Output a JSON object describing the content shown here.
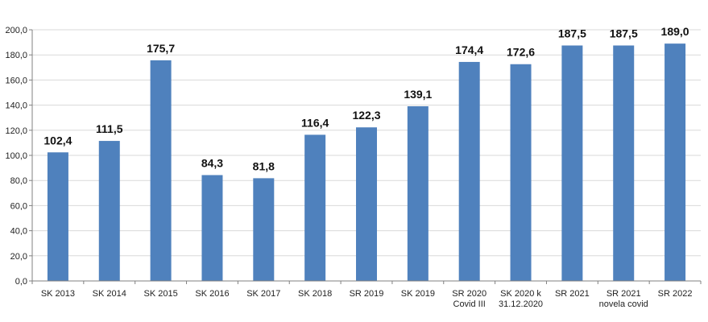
{
  "chart_data": {
    "type": "bar",
    "categories": [
      [
        "SK 2013"
      ],
      [
        "SK 2014"
      ],
      [
        "SK 2015"
      ],
      [
        "SK 2016"
      ],
      [
        "SK 2017"
      ],
      [
        "SK 2018"
      ],
      [
        "SR 2019"
      ],
      [
        "SK 2019"
      ],
      [
        "SR 2020",
        "Covid III"
      ],
      [
        "SK 2020 k",
        "31.12.2020"
      ],
      [
        "SR 2021"
      ],
      [
        "SR 2021",
        "novela covid"
      ],
      [
        "SR 2022"
      ]
    ],
    "values": [
      102.4,
      111.5,
      175.7,
      84.3,
      81.8,
      116.4,
      122.3,
      139.1,
      174.4,
      172.6,
      187.5,
      187.5,
      189.0
    ],
    "data_labels": [
      "102,4",
      "111,5",
      "175,7",
      "84,3",
      "81,8",
      "116,4",
      "122,3",
      "139,1",
      "174,4",
      "172,6",
      "187,5",
      "187,5",
      "189,0"
    ],
    "yticks": [
      0,
      20,
      40,
      60,
      80,
      100,
      120,
      140,
      160,
      180,
      200
    ],
    "ytick_labels": [
      "0,0",
      "20,0",
      "40,0",
      "60,0",
      "80,0",
      "100,0",
      "120,0",
      "140,0",
      "160,0",
      "180,0",
      "200,0"
    ],
    "ylim": [
      0,
      200
    ],
    "grid": true,
    "legend": "none",
    "bar_color": "#4F81BD",
    "grid_color": "#D9D9D9",
    "axis_color": "#808080"
  }
}
